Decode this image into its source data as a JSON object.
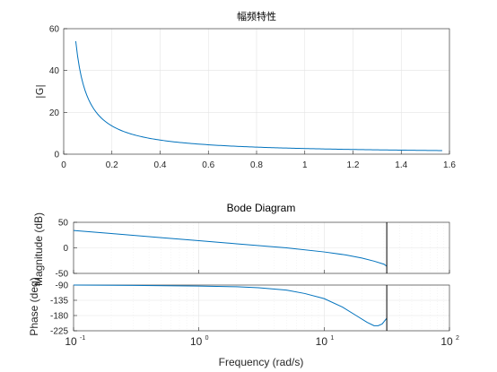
{
  "chart_data": [
    {
      "type": "line",
      "title": "幅频特性",
      "xlabel": "",
      "ylabel": "|G|",
      "xlim": [
        0,
        1.6
      ],
      "ylim": [
        0,
        60
      ],
      "xticks": [
        "0",
        "0.2",
        "0.4",
        "0.6",
        "0.8",
        "1",
        "1.2",
        "1.4",
        "1.6"
      ],
      "yticks": [
        "0",
        "20",
        "40",
        "60"
      ],
      "grid": true,
      "line_color": "#0072BD",
      "series": [
        {
          "x": [
            0.05,
            0.06,
            0.08,
            0.1,
            0.12,
            0.15,
            0.2,
            0.25,
            0.3,
            0.4,
            0.5,
            0.6,
            0.8,
            1.0,
            1.2,
            1.4,
            1.57
          ],
          "values": [
            54,
            45,
            33.8,
            27,
            22.5,
            18,
            13.5,
            10.8,
            9.0,
            6.75,
            5.4,
            4.5,
            3.4,
            2.7,
            2.25,
            1.9,
            1.7
          ]
        }
      ]
    },
    {
      "type": "line",
      "title": "Bode Diagram",
      "subplots": [
        {
          "name": "magnitude",
          "ylabel": "Magnitude (dB)",
          "ylim": [
            -50,
            50
          ],
          "yticks": [
            "50",
            "0",
            "-50"
          ],
          "x": [
            0.1,
            0.2,
            0.5,
            1,
            2,
            5,
            10,
            15,
            20,
            25,
            30,
            31.6
          ],
          "values": [
            34,
            28,
            20,
            14,
            8,
            0,
            -8,
            -14,
            -20,
            -26,
            -32,
            -36
          ]
        },
        {
          "name": "phase",
          "ylabel": "Phase (deg)",
          "ylim": [
            -225,
            -90
          ],
          "yticks": [
            "-90",
            "-135",
            "-180",
            "-225"
          ],
          "x": [
            0.1,
            0.3,
            1,
            2,
            3,
            5,
            7,
            10,
            14,
            18,
            22,
            25,
            27,
            29,
            30.5,
            31.6
          ],
          "values": [
            -90,
            -91,
            -93,
            -95,
            -98,
            -105,
            -115,
            -130,
            -155,
            -180,
            -200,
            -210,
            -210,
            -205,
            -195,
            -188
          ]
        }
      ],
      "xlabel": "Frequency  (rad/s)",
      "xscale": "log",
      "xlim": [
        0.1,
        100
      ],
      "xticks": [
        {
          "base": "10",
          "exp": "-1"
        },
        {
          "base": "10",
          "exp": "0"
        },
        {
          "base": "10",
          "exp": "1"
        },
        {
          "base": "10",
          "exp": "2"
        }
      ],
      "vertical_marker_x": 31.6,
      "grid": true,
      "line_color": "#0072BD"
    }
  ]
}
